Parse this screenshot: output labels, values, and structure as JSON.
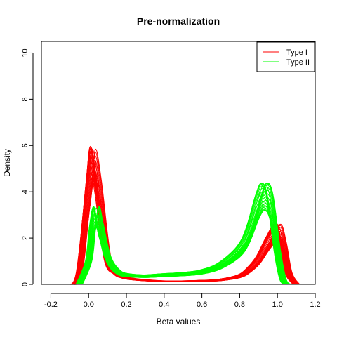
{
  "chart_data": {
    "type": "line",
    "title": "Pre-normalization",
    "xlabel": "Beta values",
    "ylabel": "Density",
    "xlim": [
      -0.25,
      1.2
    ],
    "ylim": [
      0,
      10.5
    ],
    "x_ticks": [
      -0.2,
      0.0,
      0.2,
      0.4,
      0.6,
      0.8,
      1.0,
      1.2
    ],
    "x_tick_labels": [
      "-0.2",
      "0.0",
      "0.2",
      "0.4",
      "0.6",
      "0.8",
      "1.0",
      "1.2"
    ],
    "y_ticks": [
      0,
      2,
      4,
      6,
      8,
      10
    ],
    "y_tick_labels": [
      "0",
      "2",
      "4",
      "6",
      "8",
      "10"
    ],
    "legend": {
      "position": "top-right",
      "entries": [
        {
          "label": "Type I",
          "color": "#ff0000"
        },
        {
          "label": "Type II",
          "color": "#00ff00"
        }
      ]
    },
    "grid": false,
    "series": [
      {
        "name": "Type I",
        "color": "#ff0000",
        "x": [
          -0.1,
          -0.05,
          0.0,
          0.02,
          0.05,
          0.1,
          0.15,
          0.2,
          0.3,
          0.4,
          0.5,
          0.6,
          0.7,
          0.8,
          0.85,
          0.9,
          0.95,
          1.0,
          1.03,
          1.06,
          1.1
        ],
        "y": [
          0.0,
          0.5,
          4.5,
          5.85,
          4.5,
          1.2,
          0.5,
          0.3,
          0.2,
          0.15,
          0.15,
          0.17,
          0.22,
          0.4,
          0.7,
          1.2,
          2.0,
          2.6,
          1.8,
          0.5,
          0.0
        ]
      },
      {
        "name": "Type II",
        "color": "#00ff00",
        "x": [
          -0.05,
          0.0,
          0.02,
          0.04,
          0.06,
          0.1,
          0.15,
          0.2,
          0.3,
          0.4,
          0.5,
          0.6,
          0.7,
          0.8,
          0.85,
          0.9,
          0.93,
          0.96,
          1.0,
          1.03,
          1.06
        ],
        "y": [
          0.0,
          1.0,
          2.4,
          3.3,
          2.6,
          1.2,
          0.6,
          0.45,
          0.4,
          0.45,
          0.5,
          0.6,
          0.9,
          1.6,
          2.4,
          3.8,
          4.3,
          3.8,
          1.4,
          0.2,
          0.0
        ]
      }
    ]
  }
}
